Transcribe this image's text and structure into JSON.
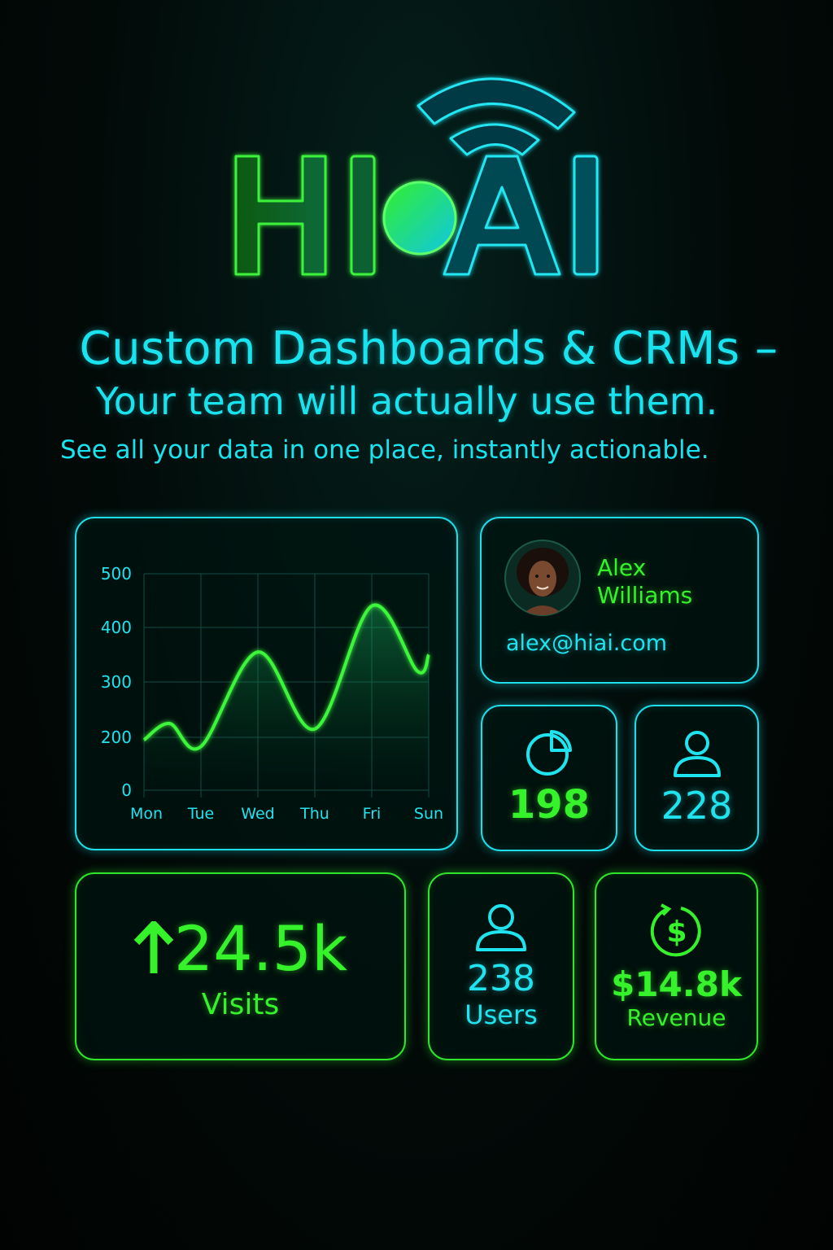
{
  "logo": {
    "text": "HI AI",
    "icon": "wifi-signal-icon"
  },
  "headline": {
    "line1": "Custom Dashboards & CRMs –",
    "line2": "Your team will actually use them.",
    "subtitle": "See all your data in one place, instantly actionable."
  },
  "chart_data": {
    "type": "area",
    "categories": [
      "Mon",
      "Tue",
      "Wed",
      "Thu",
      "Fri",
      "Sun"
    ],
    "yticks": [
      "500",
      "400",
      "300",
      "200",
      "0"
    ],
    "ytick_values": [
      500,
      400,
      300,
      200,
      0
    ],
    "points": [
      {
        "x": "Mon",
        "y": 190
      },
      {
        "x": "Mon-Tue",
        "y": 225
      },
      {
        "x": "Tue",
        "y": 165
      },
      {
        "x": "Wed",
        "y": 355
      },
      {
        "x": "Thu",
        "y": 215
      },
      {
        "x": "Fri",
        "y": 440
      },
      {
        "x": "Fri-Sun",
        "y": 320
      },
      {
        "x": "Sun",
        "y": 350
      }
    ],
    "grid": true,
    "line_color": "#3cf53a",
    "label_color": "#1fe3ef"
  },
  "profile": {
    "first_name": "Alex",
    "last_name": "Williams",
    "email": "alex@hiai.com"
  },
  "stats": [
    {
      "icon": "pie-chart-icon",
      "value": "198"
    },
    {
      "icon": "user-icon",
      "value": "228"
    }
  ],
  "visits": {
    "icon": "arrow-up-icon",
    "value": "24.5k",
    "label": "Visits"
  },
  "users": {
    "icon": "user-icon",
    "value": "238",
    "label": "Users"
  },
  "revenue": {
    "icon": "dollar-cycle-icon",
    "value": "$14.8k",
    "label": "Revenue"
  },
  "colors": {
    "cyan": "#1fdde9",
    "green": "#2ee52b",
    "background": "#020a08"
  }
}
